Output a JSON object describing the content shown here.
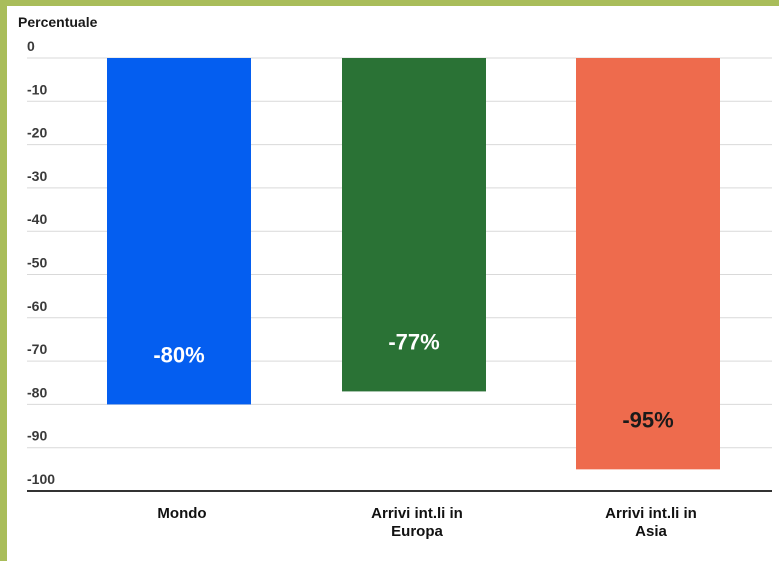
{
  "chart_data": {
    "type": "bar",
    "ylabel": "Percentuale",
    "xlabel": "",
    "title": "",
    "ylim": [
      -100,
      0
    ],
    "yticks": [
      0,
      -10,
      -20,
      -30,
      -40,
      -50,
      -60,
      -70,
      -80,
      -90,
      -100
    ],
    "ytick_labels": [
      "0",
      "-10",
      "-20",
      "-30",
      "-40",
      "-50",
      "-60",
      "-70",
      "-80",
      "-90",
      "-100"
    ],
    "categories": [
      [
        "Mondo"
      ],
      [
        "Arrivi int.li in",
        "Europa"
      ],
      [
        "Arrivi int.li in",
        "Asia"
      ]
    ],
    "values": [
      -80,
      -77,
      -95
    ],
    "data_labels": [
      "-80%",
      "-77%",
      "-95%"
    ],
    "colors": [
      "#045ef0",
      "#2a7235",
      "#ee6b4d"
    ],
    "label_colors": [
      "#ffffff",
      "#ffffff",
      "#1a1a1a"
    ],
    "grid": true,
    "legend": "none"
  }
}
